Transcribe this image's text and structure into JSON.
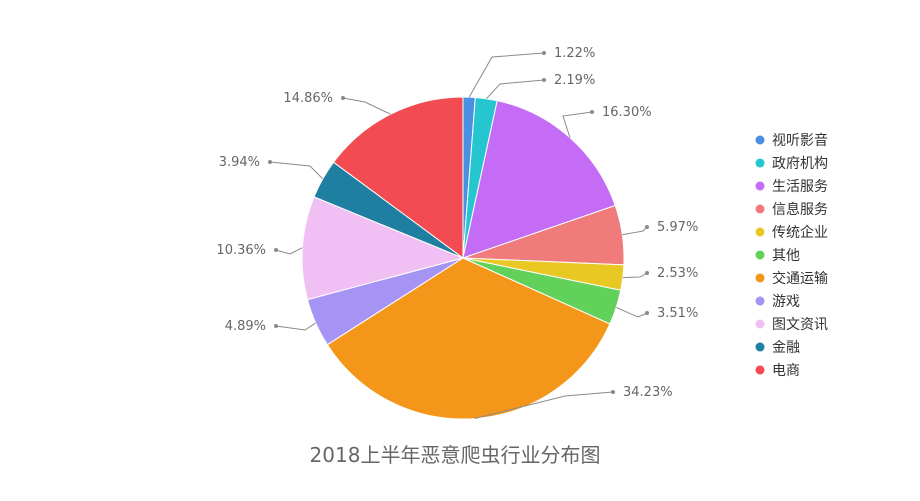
{
  "chart_data": {
    "type": "pie",
    "title": "2018上半年恶意爬虫行业分布图",
    "legend_position": "right",
    "start_angle_deg": 0,
    "direction": "clockwise",
    "slices": [
      {
        "label": "视听影音",
        "value": 1.22,
        "value_label": "1.22%",
        "color": "#4a90e2"
      },
      {
        "label": "政府机构",
        "value": 2.19,
        "value_label": "2.19%",
        "color": "#26c6d0"
      },
      {
        "label": "生活服务",
        "value": 16.3,
        "value_label": "16.30%",
        "color": "#c46cf5"
      },
      {
        "label": "信息服务",
        "value": 5.97,
        "value_label": "5.97%",
        "color": "#f07b7b"
      },
      {
        "label": "传统企业",
        "value": 2.53,
        "value_label": "2.53%",
        "color": "#e9c824"
      },
      {
        "label": "其他",
        "value": 3.51,
        "value_label": "3.51%",
        "color": "#62d15a"
      },
      {
        "label": "交通运输",
        "value": 34.23,
        "value_label": "34.23%",
        "color": "#f39619"
      },
      {
        "label": "游戏",
        "value": 4.89,
        "value_label": "4.89%",
        "color": "#a694f5"
      },
      {
        "label": "图文资讯",
        "value": 10.36,
        "value_label": "10.36%",
        "color": "#f0c0f5"
      },
      {
        "label": "金融",
        "value": 3.94,
        "value_label": "3.94%",
        "color": "#1f7fa0"
      },
      {
        "label": "电商",
        "value": 14.86,
        "value_label": "14.86%",
        "color": "#f24b52"
      }
    ]
  }
}
